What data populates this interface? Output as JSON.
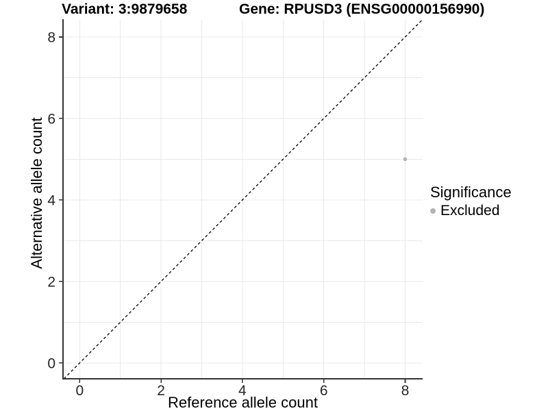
{
  "header": {
    "variant_title": "Variant: 3:9879658",
    "gene_title": "Gene: RPUSD3 (ENSG00000156990)"
  },
  "chart_data": {
    "type": "scatter",
    "title": "Variant: 3:9879658 / Gene: RPUSD3 (ENSG00000156990)",
    "xlabel": "Reference allele count",
    "ylabel": "Alternative allele count",
    "xlim": [
      -0.41,
      8.43
    ],
    "ylim": [
      -0.39,
      8.42
    ],
    "x_ticks": [
      0,
      2,
      4,
      6,
      8
    ],
    "y_ticks": [
      0,
      2,
      4,
      6,
      8
    ],
    "gridlines_x": [
      0,
      1,
      2,
      3,
      4,
      5,
      6,
      7,
      8
    ],
    "gridlines_y": [
      0,
      1,
      2,
      3,
      4,
      5,
      6,
      7,
      8
    ],
    "grid": true,
    "points": [
      {
        "x": 8,
        "y": 5,
        "series": "Excluded"
      }
    ],
    "identity_line": {
      "slope": 1,
      "intercept": 0,
      "style": "dashed"
    },
    "legend": {
      "title": "Significance",
      "position": "right",
      "entries": [
        {
          "label": "Excluded",
          "color": "#b3b3b3"
        }
      ]
    },
    "colors": {
      "point": "#b3b3b3",
      "grid": "#e8e8e8",
      "axis": "#333333",
      "tick_label": "#262626",
      "identity_line": "#000000"
    }
  }
}
